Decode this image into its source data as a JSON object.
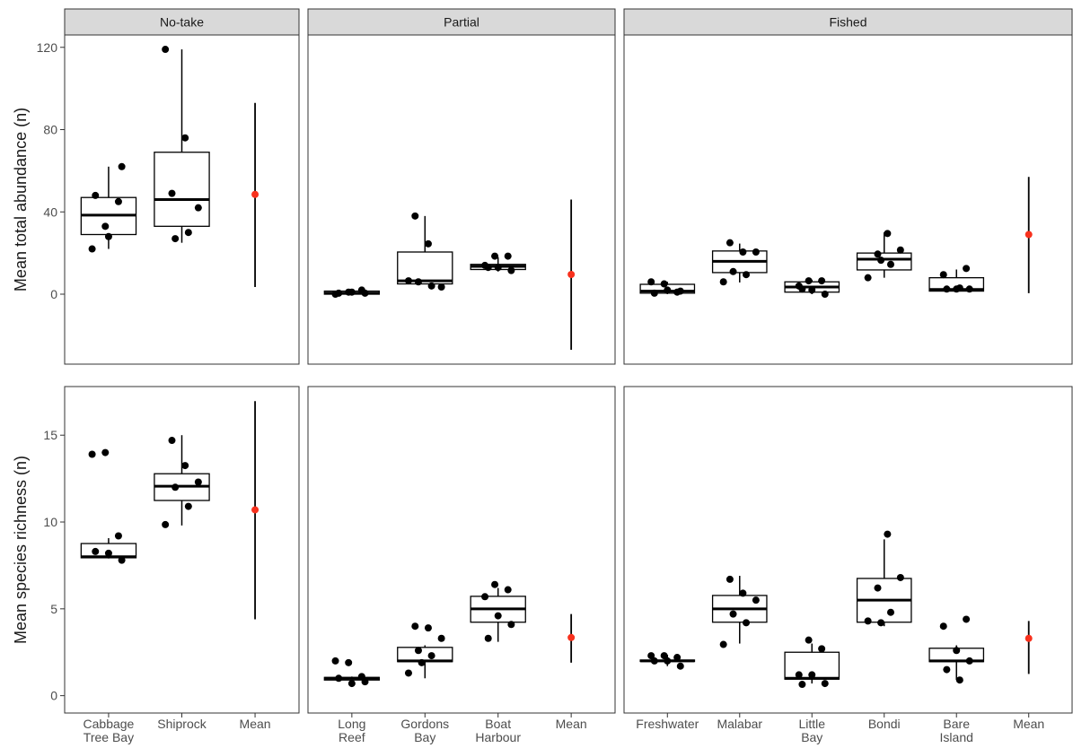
{
  "chart_data": {
    "type": "boxplot",
    "mean_color": "#f8311d",
    "facets": [
      "No-take",
      "Partial",
      "Fished"
    ],
    "x_categories": [
      [
        "Cabbage\nTree Bay",
        "Shiprock",
        "Mean"
      ],
      [
        "Long\nReef",
        "Gordons\nBay",
        "Boat\nHarbour",
        "Mean"
      ],
      [
        "Freshwater",
        "Malabar",
        "Little\nBay",
        "Bondi",
        "Bare\nIsland",
        "Mean"
      ]
    ],
    "rows": [
      {
        "y_label": "Mean total abundance (n)",
        "ylim": [
          -34,
          126
        ],
        "yticks": [
          0,
          40,
          80,
          120
        ],
        "panels": [
          {
            "boxes": [
              {
                "whislo": 22,
                "q1": 29,
                "median": 38.4,
                "q3": 47,
                "whishi": 62,
                "points": [
                  22,
                  33,
                  45,
                  48,
                  28,
                  62
                ]
              },
              {
                "whislo": 25,
                "q1": 33,
                "median": 46,
                "q3": 69,
                "whishi": 119,
                "points": [
                  49,
                  76,
                  42,
                  27,
                  30,
                  119
                ]
              }
            ],
            "mean": {
              "value": 48.5,
              "lo": 3.5,
              "hi": 93
            }
          },
          {
            "boxes": [
              {
                "whislo": 0,
                "q1": 0,
                "median": 0.5,
                "q3": 1.5,
                "whishi": 2,
                "points": [
                  0,
                  1,
                  2,
                  0.5,
                  1,
                  0.5
                ]
              },
              {
                "whislo": 5,
                "q1": 5,
                "median": 6.5,
                "q3": 20.5,
                "whishi": 38,
                "points": [
                  38,
                  24.5,
                  3.5,
                  6,
                  4,
                  6.5
                ]
              },
              {
                "whislo": 11,
                "q1": 12,
                "median": 13.5,
                "q3": 14.5,
                "whishi": 18,
                "points": [
                  18.5,
                  18.5,
                  14,
                  13,
                  11.5,
                  13
                ]
              }
            ],
            "mean": {
              "value": 9.6,
              "lo": -27,
              "hi": 46
            }
          },
          {
            "boxes": [
              {
                "whislo": 0,
                "q1": 0.5,
                "median": 1.5,
                "q3": 4.8,
                "whishi": 6,
                "points": [
                  6,
                  5,
                  1,
                  0.5,
                  2,
                  1.5
                ]
              },
              {
                "whislo": 5.7,
                "q1": 10.5,
                "median": 16,
                "q3": 21,
                "whishi": 24.6,
                "points": [
                  25,
                  20.5,
                  20.5,
                  11,
                  9.5,
                  6
                ]
              },
              {
                "whislo": 0,
                "q1": 1,
                "median": 3.5,
                "q3": 6,
                "whishi": 7,
                "points": [
                  6.5,
                  6.5,
                  4,
                  2,
                  0,
                  2.5
                ]
              },
              {
                "whislo": 8,
                "q1": 11.8,
                "median": 17,
                "q3": 20,
                "whishi": 30,
                "points": [
                  29.5,
                  21.5,
                  19.5,
                  14.5,
                  8,
                  16.5
                ]
              },
              {
                "whislo": 1.5,
                "q1": 1.5,
                "median": 2.3,
                "q3": 8,
                "whishi": 12,
                "points": [
                  12.5,
                  9.5,
                  2.5,
                  2.5,
                  2.5,
                  3
                ]
              }
            ],
            "mean": {
              "value": 29,
              "lo": 0.5,
              "hi": 57
            }
          }
        ]
      },
      {
        "y_label": "Mean species richness (n)",
        "ylim": [
          -1,
          17.8
        ],
        "yticks": [
          0,
          5,
          10,
          15
        ],
        "panels": [
          {
            "boxes": [
              {
                "whislo": 7.9,
                "q1": 7.94,
                "median": 8.0,
                "q3": 8.76,
                "whishi": 9.07,
                "points": [
                  13.9,
                  14.0,
                  9.2,
                  8.3,
                  8.2,
                  7.8
                ]
              },
              {
                "whislo": 9.8,
                "q1": 11.24,
                "median": 12.06,
                "q3": 12.78,
                "whishi": 15,
                "points": [
                  14.7,
                  13.25,
                  12.3,
                  12.0,
                  10.9,
                  9.85
                ]
              }
            ],
            "mean": {
              "value": 10.7,
              "lo": 4.4,
              "hi": 16.96
            }
          },
          {
            "boxes": [
              {
                "whislo": 0.7,
                "q1": 0.9,
                "median": 1,
                "q3": 1.05,
                "whishi": 1.1,
                "points": [
                  2.0,
                  1.9,
                  1.1,
                  1.0,
                  0.7,
                  0.8
                ]
              },
              {
                "whislo": 1.0,
                "q1": 1.96,
                "median": 2.0,
                "q3": 2.78,
                "whishi": 2.9,
                "points": [
                  4.0,
                  3.9,
                  3.3,
                  2.6,
                  2.3,
                  1.3,
                  1.9
                ]
              },
              {
                "whislo": 3.1,
                "q1": 4.23,
                "median": 5.0,
                "q3": 5.72,
                "whishi": 6.2,
                "points": [
                  6.4,
                  6.1,
                  5.7,
                  4.6,
                  4.1,
                  3.3
                ]
              }
            ],
            "mean": {
              "value": 3.35,
              "lo": 1.9,
              "hi": 4.7
            }
          },
          {
            "boxes": [
              {
                "whislo": 1.7,
                "q1": 1.97,
                "median": 2.0,
                "q3": 2.05,
                "whishi": 2.35,
                "points": [
                  2.3,
                  2.3,
                  2.2,
                  2.0,
                  2.0,
                  1.7
                ]
              },
              {
                "whislo": 3.0,
                "q1": 4.23,
                "median": 5.0,
                "q3": 5.77,
                "whishi": 6.9,
                "points": [
                  6.7,
                  5.9,
                  5.5,
                  4.7,
                  4.2,
                  2.95
                ]
              },
              {
                "whislo": 0.7,
                "q1": 0.95,
                "median": 1.0,
                "q3": 2.5,
                "whishi": 3.0,
                "points": [
                  3.2,
                  2.7,
                  1.2,
                  1.2,
                  0.7,
                  0.65
                ]
              },
              {
                "whislo": 4.0,
                "q1": 4.23,
                "median": 5.5,
                "q3": 6.75,
                "whishi": 9.0,
                "points": [
                  9.3,
                  6.8,
                  6.2,
                  4.8,
                  4.3,
                  4.2
                ]
              },
              {
                "whislo": 0.9,
                "q1": 1.96,
                "median": 2.0,
                "q3": 2.73,
                "whishi": 2.9,
                "points": [
                  4.4,
                  4.0,
                  2.6,
                  2.0,
                  1.5,
                  0.9
                ]
              }
            ],
            "mean": {
              "value": 3.3,
              "lo": 1.25,
              "hi": 4.3
            }
          }
        ]
      }
    ]
  }
}
